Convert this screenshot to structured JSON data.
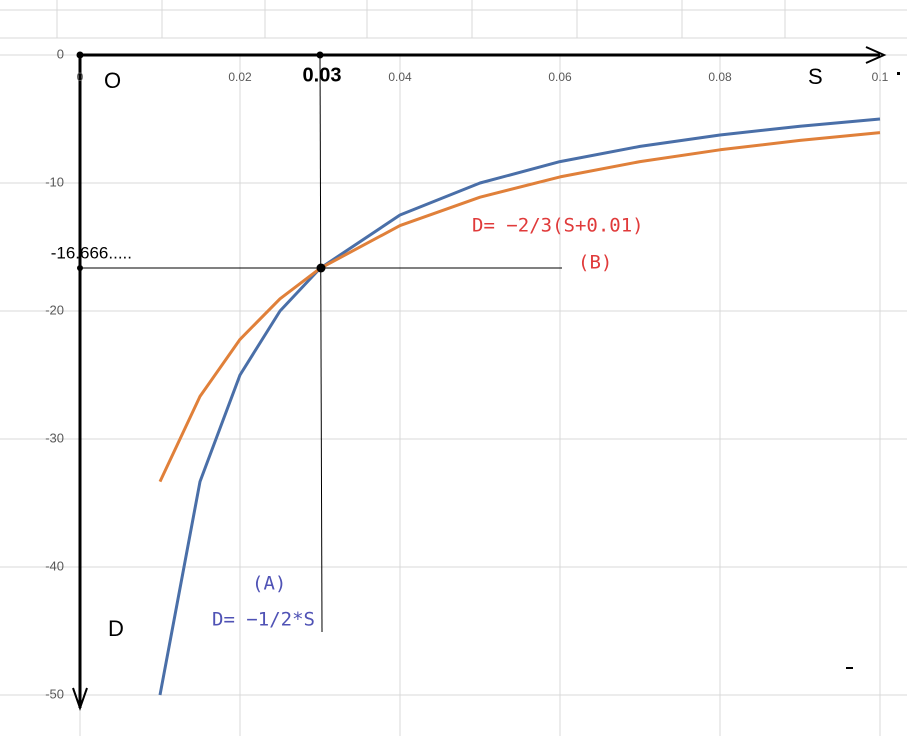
{
  "chart_data": {
    "type": "line",
    "x": [
      0.01,
      0.015,
      0.02,
      0.025,
      0.03,
      0.04,
      0.05,
      0.06,
      0.07,
      0.08,
      0.09,
      0.1
    ],
    "series": [
      {
        "name": "(A)",
        "color": "#4a6fa8",
        "values": [
          -50,
          -33.33,
          -25,
          -20,
          -16.67,
          -12.5,
          -10,
          -8.33,
          -7.14,
          -6.25,
          -5.56,
          -5
        ]
      },
      {
        "name": "(B)",
        "color": "#e0803a",
        "values": [
          -33.33,
          -26.67,
          -22.22,
          -19.05,
          -16.67,
          -13.33,
          -11.11,
          -9.52,
          -8.33,
          -7.41,
          -6.67,
          -6.06
        ]
      }
    ],
    "xlim": [
      0,
      0.1
    ],
    "xticks": [
      0,
      0.02,
      0.04,
      0.06,
      0.08,
      0.1
    ],
    "ylim": [
      -50,
      0
    ],
    "yticks": [
      0,
      -10,
      -20,
      -30,
      -40,
      -50
    ],
    "grid": true,
    "annotations": [
      "O",
      "S",
      "D",
      "0.03",
      "-16.666.....",
      "D= −2/3(S+0.01)",
      "(B)",
      "(A)",
      "D= −1/2*S"
    ]
  }
}
